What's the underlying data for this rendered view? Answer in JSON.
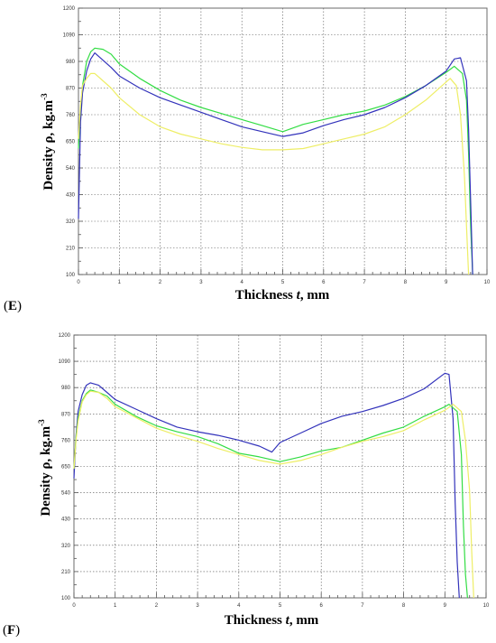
{
  "chart_data": [
    {
      "type": "line",
      "panel_label": "E",
      "xlabel_pre": "Thickness ",
      "xlabel_var": "t",
      "xlabel_post": ", mm",
      "ylabel_text": "Density ρ, kg.m",
      "ylabel_sup": "-3",
      "xlim": [
        0,
        10
      ],
      "ylim": [
        100,
        1200
      ],
      "xticks": [
        "0",
        "1",
        "2",
        "3",
        "4",
        "5",
        "6",
        "7",
        "8",
        "9",
        "10"
      ],
      "yticks": [
        "100",
        "210",
        "320",
        "430",
        "540",
        "650",
        "760",
        "870",
        "980",
        "1090",
        "1200"
      ],
      "grid": true,
      "series": [
        {
          "color": "#33dd44",
          "x": [
            0,
            0.05,
            0.1,
            0.2,
            0.3,
            0.4,
            0.6,
            0.8,
            1.0,
            1.5,
            2,
            2.5,
            3,
            3.5,
            4,
            4.5,
            5,
            5.5,
            6,
            6.5,
            7,
            7.5,
            8,
            8.5,
            9,
            9.2,
            9.4,
            9.5,
            9.55,
            9.6,
            9.65
          ],
          "y": [
            620,
            780,
            880,
            980,
            1020,
            1035,
            1030,
            1010,
            970,
            910,
            860,
            820,
            790,
            765,
            740,
            715,
            690,
            720,
            740,
            760,
            775,
            800,
            835,
            880,
            935,
            960,
            930,
            820,
            600,
            300,
            100
          ]
        },
        {
          "color": "#3333bb",
          "x": [
            0,
            0.05,
            0.1,
            0.2,
            0.3,
            0.4,
            0.6,
            0.8,
            1.0,
            1.5,
            2,
            2.5,
            3,
            3.5,
            4,
            4.5,
            5,
            5.5,
            6,
            6.5,
            7,
            7.5,
            8,
            8.5,
            9,
            9.2,
            9.35,
            9.5,
            9.55,
            9.6,
            9.65
          ],
          "y": [
            330,
            730,
            850,
            940,
            990,
            1015,
            985,
            955,
            920,
            870,
            830,
            800,
            770,
            740,
            710,
            690,
            670,
            685,
            715,
            740,
            760,
            790,
            830,
            880,
            940,
            990,
            995,
            900,
            700,
            400,
            100
          ]
        },
        {
          "color": "#eeee66",
          "x": [
            0,
            0.05,
            0.1,
            0.2,
            0.3,
            0.4,
            0.6,
            0.8,
            1.0,
            1.5,
            2,
            2.5,
            3,
            3.5,
            4,
            4.5,
            5,
            5.5,
            6,
            6.5,
            7,
            7.5,
            8,
            8.5,
            9,
            9.1,
            9.25,
            9.35,
            9.45,
            9.5,
            9.55
          ],
          "y": [
            660,
            800,
            880,
            910,
            930,
            930,
            900,
            870,
            830,
            760,
            710,
            680,
            660,
            640,
            625,
            615,
            615,
            620,
            640,
            660,
            680,
            710,
            760,
            820,
            895,
            910,
            880,
            760,
            500,
            300,
            100
          ]
        }
      ]
    },
    {
      "type": "line",
      "panel_label": "F",
      "xlabel_pre": "Thickness ",
      "xlabel_var": "t",
      "xlabel_post": ", mm",
      "ylabel_text": "Density ρ, kg.m",
      "ylabel_sup": "-3",
      "xlim": [
        0,
        10
      ],
      "ylim": [
        100,
        1200
      ],
      "xticks": [
        "0",
        "1",
        "2",
        "3",
        "4",
        "5",
        "6",
        "7",
        "8",
        "9",
        "10"
      ],
      "yticks": [
        "100",
        "210",
        "320",
        "430",
        "540",
        "650",
        "760",
        "870",
        "980",
        "1090",
        "1200"
      ],
      "grid": true,
      "series": [
        {
          "color": "#3333bb",
          "x": [
            0,
            0.05,
            0.1,
            0.2,
            0.3,
            0.4,
            0.6,
            0.8,
            1.0,
            1.5,
            2,
            2.5,
            3,
            3.5,
            4,
            4.5,
            4.8,
            5,
            5.5,
            6,
            6.5,
            7,
            7.5,
            8,
            8.5,
            9,
            9.1,
            9.2,
            9.25,
            9.3,
            9.35
          ],
          "y": [
            600,
            780,
            880,
            950,
            990,
            1000,
            990,
            960,
            930,
            890,
            850,
            815,
            795,
            780,
            760,
            735,
            710,
            750,
            790,
            830,
            860,
            880,
            905,
            935,
            975,
            1040,
            1035,
            850,
            500,
            250,
            100
          ]
        },
        {
          "color": "#33dd44",
          "x": [
            0,
            0.05,
            0.1,
            0.2,
            0.3,
            0.4,
            0.6,
            0.8,
            1.0,
            1.5,
            2,
            2.5,
            3,
            3.5,
            4,
            4.5,
            5,
            5.5,
            6,
            6.5,
            7,
            7.5,
            8,
            8.5,
            9,
            9.1,
            9.3,
            9.4,
            9.45,
            9.5,
            9.55
          ],
          "y": [
            640,
            770,
            850,
            925,
            955,
            970,
            960,
            945,
            910,
            860,
            820,
            795,
            775,
            745,
            705,
            690,
            670,
            690,
            715,
            730,
            760,
            790,
            815,
            860,
            900,
            910,
            880,
            700,
            400,
            200,
            100
          ]
        },
        {
          "color": "#eeee66",
          "x": [
            0,
            0.05,
            0.1,
            0.2,
            0.3,
            0.4,
            0.6,
            0.8,
            1.0,
            1.5,
            2,
            2.5,
            3,
            3.5,
            4,
            4.5,
            5,
            5.5,
            6,
            6.5,
            7,
            7.5,
            8,
            8.5,
            9,
            9.2,
            9.4,
            9.5,
            9.6,
            9.65,
            9.7
          ],
          "y": [
            640,
            760,
            840,
            920,
            950,
            965,
            960,
            935,
            900,
            855,
            810,
            780,
            755,
            725,
            700,
            675,
            660,
            675,
            700,
            730,
            755,
            775,
            800,
            845,
            885,
            910,
            880,
            760,
            550,
            300,
            100
          ]
        }
      ]
    }
  ]
}
